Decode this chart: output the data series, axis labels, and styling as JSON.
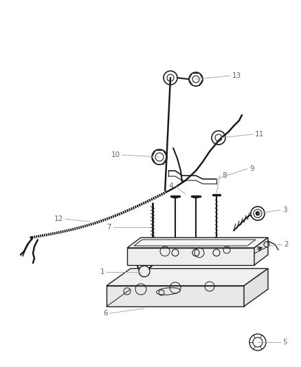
{
  "bg_color": "#ffffff",
  "line_color": "#1a1a1a",
  "label_color": "#666666",
  "leader_color": "#aaaaaa",
  "font_size": 7.5
}
